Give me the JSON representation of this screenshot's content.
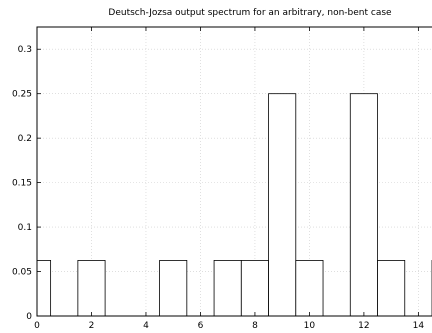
{
  "chart_data": {
    "type": "bar",
    "title": "Deutsch-Jozsa output spectrum for an arbitrary, non-bent case",
    "xlabel": "",
    "ylabel": "",
    "x": [
      0,
      2,
      5,
      7,
      8,
      9,
      10,
      12,
      13,
      15
    ],
    "values": [
      0.0625,
      0.0625,
      0.0625,
      0.0625,
      0.0625,
      0.25,
      0.0625,
      0.25,
      0.0625,
      0.0625
    ],
    "bar_width": 1,
    "xlim": [
      0,
      14.5
    ],
    "ylim": [
      0,
      0.325
    ],
    "xticks": [
      0,
      2,
      4,
      6,
      8,
      10,
      12,
      14
    ],
    "xtick_labels": [
      "0",
      "2",
      "4",
      "6",
      "8",
      "10",
      "12",
      "14"
    ],
    "yticks": [
      0,
      0.05,
      0.1,
      0.15,
      0.2,
      0.25,
      0.3
    ],
    "ytick_labels": [
      "0",
      "0.05",
      "0.1",
      "0.15",
      "0.2",
      "0.25",
      "0.3"
    ],
    "grid": true
  }
}
